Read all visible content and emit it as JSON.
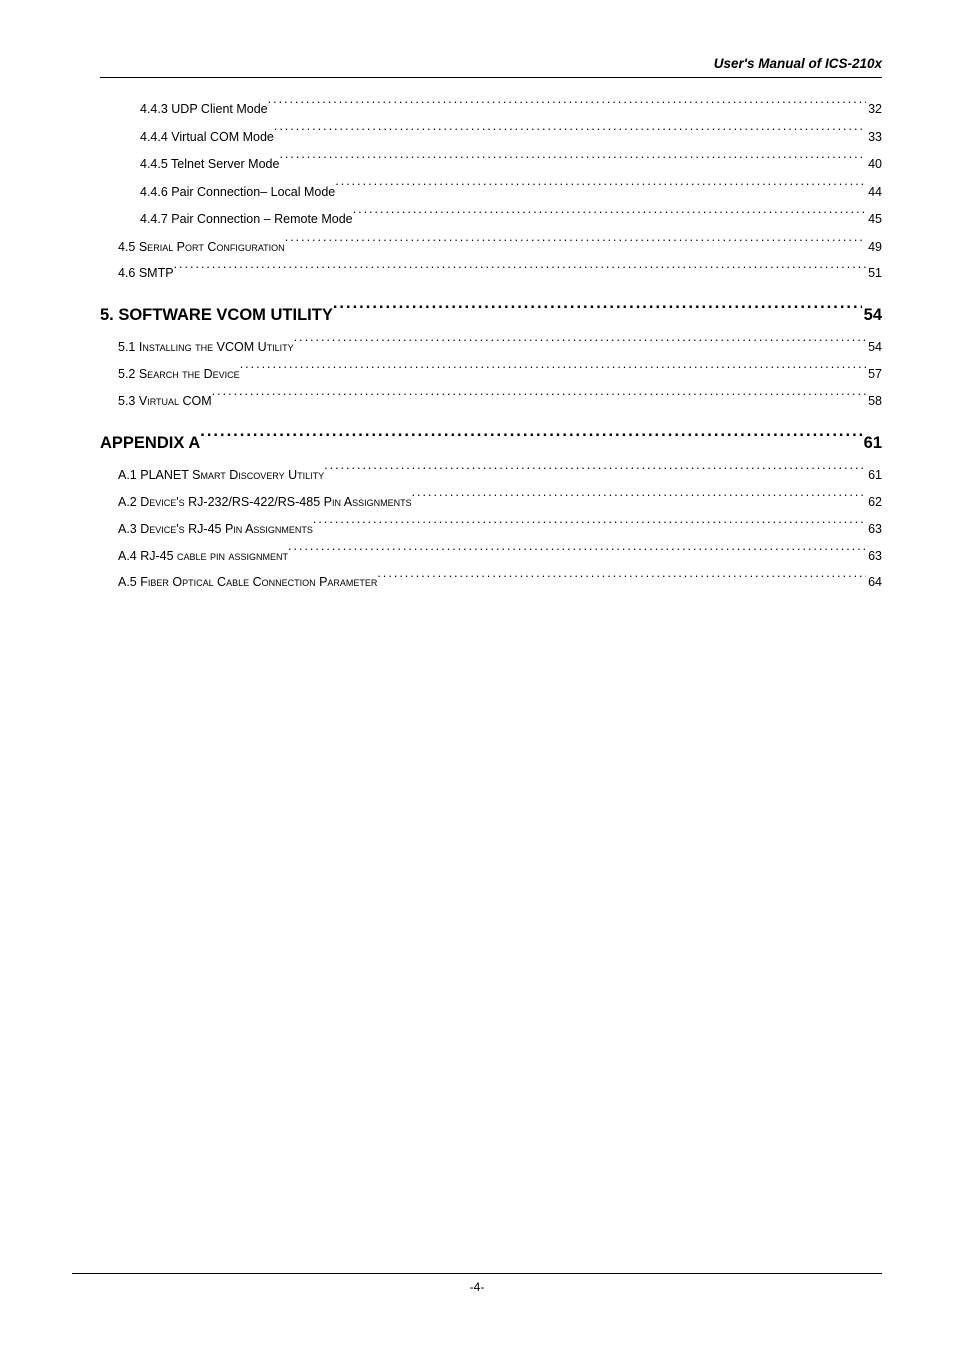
{
  "header": {
    "title": "User's Manual of ICS-210x"
  },
  "entries": [
    {
      "level": "sub",
      "label": "4.4.3 UDP Client Mode ",
      "page": "32"
    },
    {
      "level": "sub",
      "label": "4.4.4 Virtual COM Mode",
      "page": "33"
    },
    {
      "level": "sub",
      "label": "4.4.5 Telnet Server Mode",
      "page": "40"
    },
    {
      "level": "sub",
      "label": "4.4.6 Pair Connection– Local Mode ",
      "page": "44"
    },
    {
      "level": "sub",
      "label": "4.4.7 Pair Connection – Remote Mode ",
      "page": "45"
    },
    {
      "level": "mid",
      "label": "4.5 Serial Port Configuration ",
      "page": " 49"
    },
    {
      "level": "mid",
      "label": "4.6 SMTP",
      "page": " 51"
    },
    {
      "level": "top",
      "label": "5.  SOFTWARE VCOM UTILITY ",
      "page": "54"
    },
    {
      "level": "mid",
      "label": "5.1 Installing the VCOM Utility ",
      "page": " 54"
    },
    {
      "level": "mid",
      "label": "5.2 Search the Device",
      "page": " 57"
    },
    {
      "level": "mid",
      "label": "5.3 Virtual COM",
      "page": " 58"
    },
    {
      "level": "top",
      "label": "APPENDIX A",
      "page": "61"
    },
    {
      "level": "mid",
      "label": "A.1 PLANET Smart Discovery Utility ",
      "page": " 61"
    },
    {
      "level": "mid",
      "label": "A.2 Device's RJ-232/RS-422/RS-485 Pin Assignments",
      "page": " 62"
    },
    {
      "level": "mid",
      "label": "A.3 Device's RJ-45 Pin Assignments ",
      "page": " 63"
    },
    {
      "level": "mid",
      "label": "A.4 RJ-45 cable pin assignment",
      "page": " 63"
    },
    {
      "level": "mid",
      "label": "A.5 Fiber Optical Cable Connection Parameter",
      "page": " 64"
    }
  ],
  "footer": {
    "pagenum": "-4-"
  }
}
